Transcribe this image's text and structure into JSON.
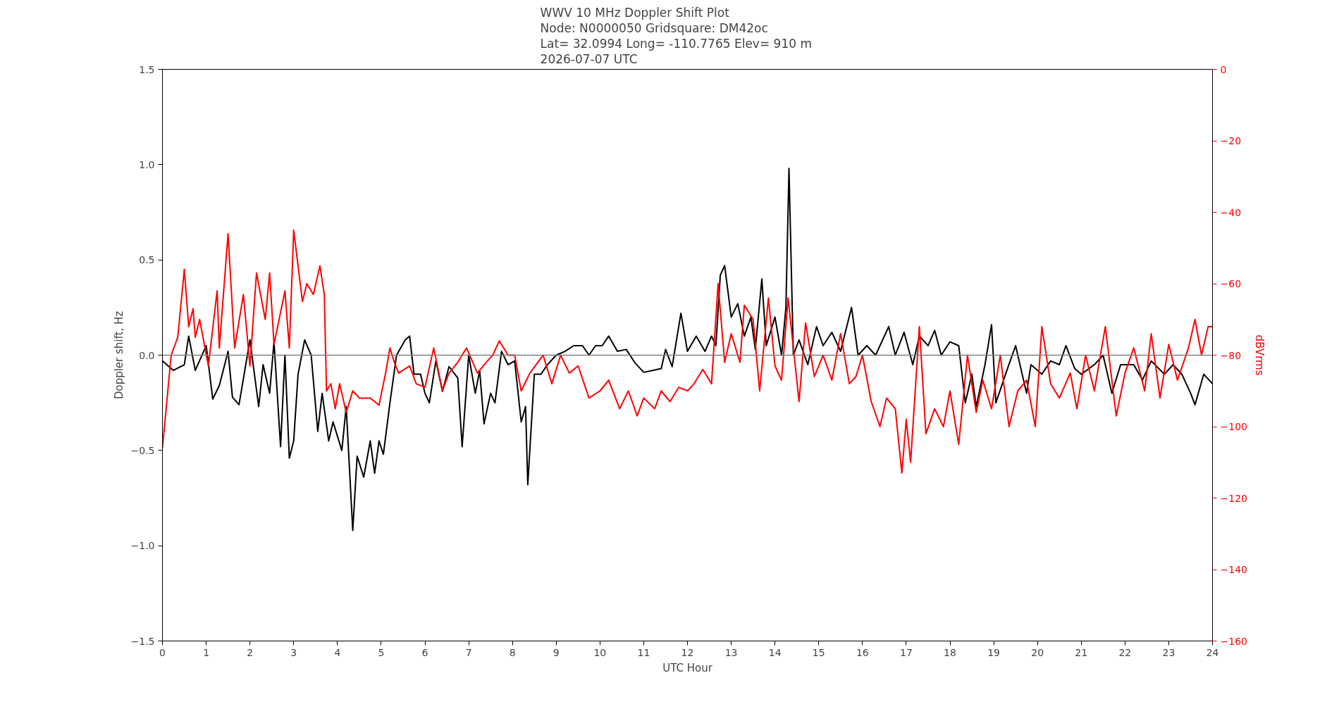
{
  "chart_data": {
    "type": "line",
    "title": "WWV 10 MHz Doppler Shift Plot\nNode:  N0000050     Gridsquare:  DM42oc\nLat= 32.0994    Long= -110.7765    Elev= 910 m\n2026-07-07  UTC",
    "xlabel": "UTC Hour",
    "ylabel": "Doppler shift, Hz",
    "y2label": "dBVrms",
    "series": [
      {
        "color": "#000000",
        "x": [
          0,
          0.25,
          0.5,
          0.6,
          0.75,
          1.0,
          1.15,
          1.3,
          1.5,
          1.6,
          1.75,
          2.0,
          2.2,
          2.3,
          2.45,
          2.55,
          2.7,
          2.8,
          2.9,
          3.0,
          3.1,
          3.25,
          3.4,
          3.55,
          3.65,
          3.8,
          3.9,
          4.1,
          4.2,
          4.35,
          4.45,
          4.6,
          4.75,
          4.85,
          4.95,
          5.05,
          5.2,
          5.35,
          5.55,
          5.65,
          5.75,
          5.9,
          6.0,
          6.1,
          6.25,
          6.4,
          6.55,
          6.75,
          6.85,
          7.0,
          7.15,
          7.25,
          7.35,
          7.5,
          7.6,
          7.75,
          7.9,
          8.05,
          8.2,
          8.3,
          8.35,
          8.5,
          8.65,
          8.8,
          9.0,
          9.2,
          9.4,
          9.6,
          9.75,
          9.9,
          10.05,
          10.2,
          10.4,
          10.6,
          10.8,
          11.0,
          11.2,
          11.4,
          11.5,
          11.65,
          11.85,
          12.0,
          12.2,
          12.4,
          12.55,
          12.65,
          12.75,
          12.85,
          13.0,
          13.15,
          13.3,
          13.45,
          13.55,
          13.7,
          13.8,
          14.0,
          14.15,
          14.25,
          14.32,
          14.42,
          14.55,
          14.75,
          14.95,
          15.1,
          15.3,
          15.5,
          15.75,
          15.9,
          16.1,
          16.3,
          16.6,
          16.75,
          16.95,
          17.15,
          17.3,
          17.5,
          17.65,
          17.8,
          18.0,
          18.2,
          18.35,
          18.5,
          18.6,
          18.8,
          18.95,
          19.05,
          19.3,
          19.5,
          19.6,
          19.75,
          19.85,
          20.1,
          20.3,
          20.5,
          20.65,
          20.85,
          21.0,
          21.3,
          21.5,
          21.7,
          21.9,
          22.2,
          22.4,
          22.6,
          22.9,
          23.1,
          23.3,
          23.5,
          23.6,
          23.8,
          24.0
        ],
        "values": [
          -0.03,
          -0.08,
          -0.05,
          0.1,
          -0.08,
          0.05,
          -0.23,
          -0.16,
          0.02,
          -0.22,
          -0.26,
          0.08,
          -0.27,
          -0.05,
          -0.2,
          0.07,
          -0.48,
          0.0,
          -0.54,
          -0.45,
          -0.1,
          0.08,
          0.0,
          -0.4,
          -0.2,
          -0.45,
          -0.35,
          -0.5,
          -0.27,
          -0.92,
          -0.53,
          -0.64,
          -0.45,
          -0.62,
          -0.45,
          -0.52,
          -0.25,
          0.0,
          0.08,
          0.1,
          -0.1,
          -0.1,
          -0.2,
          -0.25,
          -0.03,
          -0.19,
          -0.06,
          -0.12,
          -0.48,
          0.0,
          -0.2,
          -0.08,
          -0.36,
          -0.2,
          -0.25,
          0.02,
          -0.05,
          -0.03,
          -0.35,
          -0.27,
          -0.68,
          -0.1,
          -0.1,
          -0.05,
          0.0,
          0.02,
          0.05,
          0.05,
          0.0,
          0.05,
          0.05,
          0.1,
          0.02,
          0.03,
          -0.04,
          -0.09,
          -0.08,
          -0.07,
          0.03,
          -0.06,
          0.22,
          0.02,
          0.1,
          0.02,
          0.1,
          0.05,
          0.42,
          0.47,
          0.2,
          0.27,
          0.1,
          0.2,
          0.03,
          0.4,
          0.05,
          0.2,
          0.0,
          0.25,
          0.98,
          0.0,
          0.08,
          -0.05,
          0.15,
          0.05,
          0.12,
          0.02,
          0.25,
          0.0,
          0.05,
          0.0,
          0.15,
          0.0,
          0.12,
          -0.05,
          0.1,
          0.05,
          0.13,
          0.0,
          0.07,
          0.05,
          -0.25,
          -0.1,
          -0.27,
          -0.05,
          0.16,
          -0.25,
          -0.08,
          0.05,
          -0.05,
          -0.2,
          -0.05,
          -0.1,
          -0.03,
          -0.05,
          0.05,
          -0.07,
          -0.1,
          -0.05,
          0.0,
          -0.2,
          -0.05,
          -0.05,
          -0.13,
          -0.03,
          -0.1,
          -0.05,
          -0.1,
          -0.2,
          -0.26,
          -0.1,
          -0.15
        ]
      },
      {
        "color": "#ff0000",
        "axis": "y2",
        "x": [
          0,
          0.2,
          0.35,
          0.5,
          0.6,
          0.7,
          0.75,
          0.85,
          1.05,
          1.25,
          1.3,
          1.5,
          1.65,
          1.85,
          2.0,
          2.15,
          2.35,
          2.45,
          2.55,
          2.8,
          2.9,
          3.0,
          3.2,
          3.3,
          3.45,
          3.6,
          3.7,
          3.75,
          3.85,
          3.95,
          4.05,
          4.2,
          4.35,
          4.5,
          4.75,
          4.95,
          5.1,
          5.2,
          5.3,
          5.4,
          5.65,
          5.8,
          6.0,
          6.2,
          6.4,
          6.55,
          6.75,
          6.95,
          7.2,
          7.4,
          7.55,
          7.7,
          7.9,
          8.05,
          8.2,
          8.4,
          8.7,
          8.9,
          9.1,
          9.3,
          9.5,
          9.75,
          10.0,
          10.2,
          10.45,
          10.65,
          10.85,
          11.0,
          11.25,
          11.4,
          11.6,
          11.8,
          12.0,
          12.15,
          12.35,
          12.55,
          12.7,
          12.85,
          13.0,
          13.2,
          13.3,
          13.5,
          13.65,
          13.85,
          14.0,
          14.15,
          14.3,
          14.55,
          14.7,
          14.9,
          15.1,
          15.3,
          15.5,
          15.7,
          15.85,
          16.0,
          16.2,
          16.4,
          16.55,
          16.75,
          16.9,
          17.0,
          17.1,
          17.3,
          17.45,
          17.65,
          17.85,
          18.0,
          18.2,
          18.4,
          18.6,
          18.75,
          18.95,
          19.15,
          19.35,
          19.55,
          19.75,
          19.95,
          20.1,
          20.3,
          20.5,
          20.75,
          20.9,
          21.1,
          21.3,
          21.55,
          21.8,
          22.0,
          22.2,
          22.45,
          22.6,
          22.8,
          23.0,
          23.2,
          23.45,
          23.6,
          23.75,
          23.9,
          24.0
        ],
        "values": [
          -106,
          -80,
          -75,
          -56,
          -72,
          -67,
          -75,
          -70,
          -83,
          -62,
          -78,
          -46,
          -78,
          -63,
          -83,
          -57,
          -70,
          -57,
          -77,
          -62,
          -78,
          -45,
          -65,
          -60,
          -63,
          -55,
          -63,
          -90,
          -88,
          -95,
          -88,
          -96,
          -90,
          -92,
          -92,
          -94,
          -85,
          -78,
          -82,
          -85,
          -83,
          -88,
          -89,
          -78,
          -90,
          -85,
          -82,
          -78,
          -85,
          -82,
          -80,
          -76,
          -80,
          -80,
          -90,
          -85,
          -80,
          -88,
          -80,
          -85,
          -83,
          -92,
          -90,
          -87,
          -95,
          -90,
          -97,
          -92,
          -95,
          -90,
          -93,
          -89,
          -90,
          -88,
          -84,
          -88,
          -60,
          -82,
          -74,
          -82,
          -66,
          -70,
          -90,
          -64,
          -83,
          -87,
          -64,
          -93,
          -71,
          -86,
          -80,
          -87,
          -74,
          -88,
          -86,
          -80,
          -93,
          -100,
          -92,
          -95,
          -113,
          -98,
          -110,
          -72,
          -102,
          -95,
          -100,
          -90,
          -105,
          -80,
          -96,
          -87,
          -95,
          -80,
          -100,
          -90,
          -87,
          -100,
          -72,
          -88,
          -92,
          -85,
          -95,
          -80,
          -90,
          -72,
          -97,
          -85,
          -78,
          -90,
          -74,
          -92,
          -77,
          -87,
          -78,
          -70,
          -80,
          -72,
          -72
        ]
      }
    ],
    "xlim": [
      0,
      24
    ],
    "xticks": [
      0,
      1,
      2,
      3,
      4,
      5,
      6,
      7,
      8,
      9,
      10,
      11,
      12,
      13,
      14,
      15,
      16,
      17,
      18,
      19,
      20,
      21,
      22,
      23,
      24
    ],
    "ylim": [
      -1.5,
      1.5
    ],
    "yticks": [
      {
        "value": -1.5,
        "label": "−1.5"
      },
      {
        "value": -1.0,
        "label": "−1.0"
      },
      {
        "value": -0.5,
        "label": "−0.5"
      },
      {
        "value": 0,
        "label": "0.0"
      },
      {
        "value": 0.5,
        "label": "0.5"
      },
      {
        "value": 1.0,
        "label": "1.0"
      },
      {
        "value": 1.5,
        "label": "1.5"
      }
    ],
    "y2lim": [
      -160,
      0
    ],
    "y2ticks": [
      {
        "value": -160,
        "label": "−160"
      },
      {
        "value": -140,
        "label": "−140"
      },
      {
        "value": -120,
        "label": "−120"
      },
      {
        "value": -100,
        "label": "−100"
      },
      {
        "value": -80,
        "label": "−80"
      },
      {
        "value": -60,
        "label": "−60"
      },
      {
        "value": -40,
        "label": "−40"
      },
      {
        "value": -20,
        "label": "−20"
      },
      0
    ],
    "ref_lines": [
      {
        "axis": "y",
        "value": 0,
        "color": "#808080"
      }
    ],
    "grid": false
  }
}
